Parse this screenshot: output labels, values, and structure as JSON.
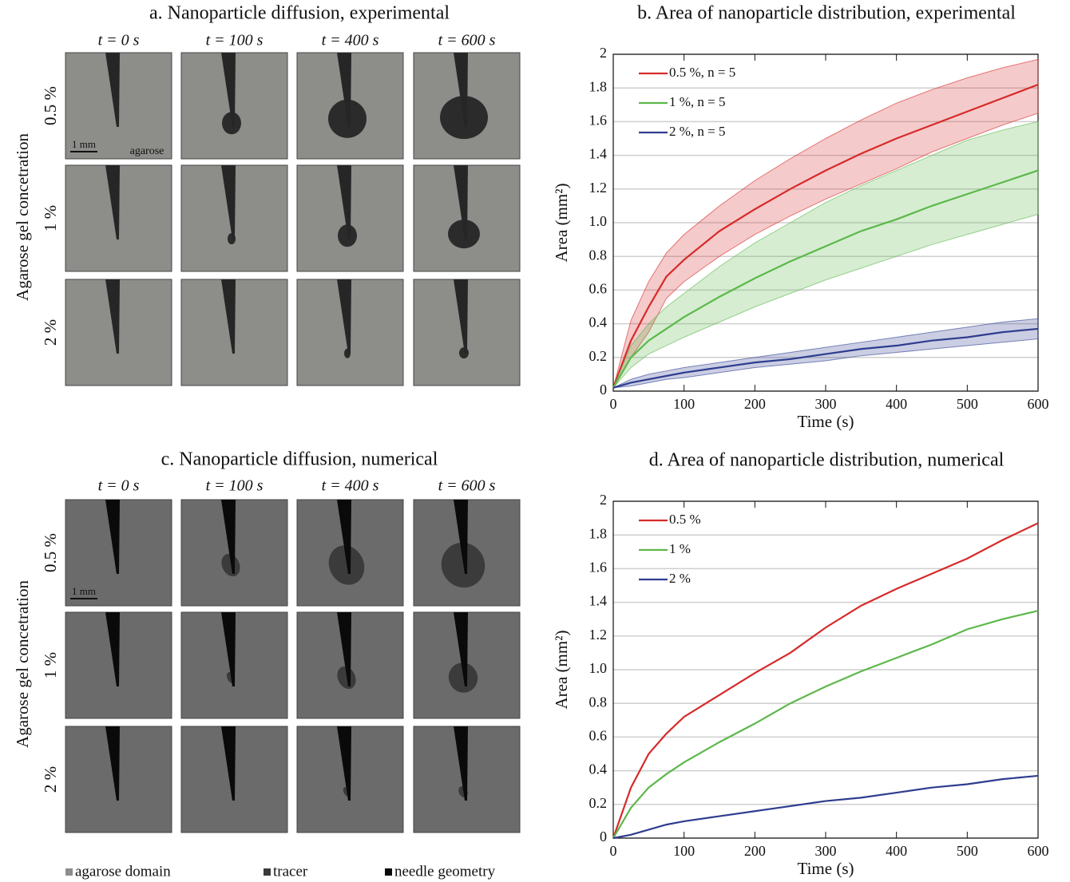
{
  "figure": {
    "panels": [
      {
        "title": "a. Nanoparticle diffusion, experimental",
        "time_labels": [
          "t = 0 s",
          "t = 100 s",
          "t = 400 s",
          "t = 600 s"
        ],
        "row_labels": [
          "0.5 %",
          "1 %",
          "2 %"
        ],
        "ylabel": "Agarose gel concetration",
        "scale_label": "1 mm",
        "domain_label": "agarose"
      },
      {
        "title": "c. Nanoparticle diffusion, numerical",
        "time_labels": [
          "t = 0 s",
          "t = 100 s",
          "t = 400 s",
          "t = 600 s"
        ],
        "row_labels": [
          "0.5 %",
          "1 %",
          "2 %"
        ],
        "ylabel": "Agarose gel concetration",
        "scale_label": "1 mm"
      }
    ],
    "legend": [
      "agarose domain",
      "tracer",
      "needle geometry"
    ]
  },
  "chart_data": [
    {
      "type": "line",
      "title": "b. Area of nanoparticle distribution, experimental",
      "xlabel": "Time (s)",
      "ylabel": "Area (mm²)",
      "x": [
        0,
        25,
        50,
        75,
        100,
        150,
        200,
        250,
        300,
        350,
        400,
        450,
        500,
        550,
        600
      ],
      "series": [
        {
          "name": "0.5 %, n = 5",
          "color": "#d62a2a",
          "values": [
            0.02,
            0.3,
            0.5,
            0.68,
            0.78,
            0.95,
            1.08,
            1.2,
            1.31,
            1.41,
            1.5,
            1.58,
            1.66,
            1.74,
            1.82
          ],
          "upper": [
            0.02,
            0.42,
            0.65,
            0.82,
            0.93,
            1.1,
            1.25,
            1.38,
            1.5,
            1.61,
            1.71,
            1.79,
            1.86,
            1.92,
            1.97
          ],
          "lower": [
            0.02,
            0.2,
            0.35,
            0.55,
            0.65,
            0.8,
            0.93,
            1.04,
            1.14,
            1.23,
            1.32,
            1.42,
            1.5,
            1.58,
            1.65
          ]
        },
        {
          "name": "1 %, n = 5",
          "color": "#5cb84a",
          "values": [
            0.02,
            0.2,
            0.3,
            0.37,
            0.44,
            0.56,
            0.67,
            0.77,
            0.86,
            0.95,
            1.02,
            1.1,
            1.17,
            1.24,
            1.31
          ],
          "upper": [
            0.02,
            0.27,
            0.4,
            0.5,
            0.58,
            0.74,
            0.88,
            1.0,
            1.12,
            1.22,
            1.31,
            1.4,
            1.49,
            1.55,
            1.6
          ],
          "lower": [
            0.02,
            0.14,
            0.22,
            0.27,
            0.32,
            0.41,
            0.5,
            0.58,
            0.66,
            0.73,
            0.8,
            0.87,
            0.93,
            0.99,
            1.05
          ]
        },
        {
          "name": "2 %, n = 5",
          "color": "#2e3d8f",
          "values": [
            0.02,
            0.05,
            0.07,
            0.09,
            0.11,
            0.14,
            0.17,
            0.19,
            0.22,
            0.25,
            0.27,
            0.3,
            0.32,
            0.35,
            0.37
          ],
          "upper": [
            0.02,
            0.07,
            0.1,
            0.12,
            0.14,
            0.17,
            0.2,
            0.23,
            0.26,
            0.29,
            0.32,
            0.35,
            0.38,
            0.41,
            0.43
          ],
          "lower": [
            0.02,
            0.03,
            0.05,
            0.07,
            0.08,
            0.11,
            0.14,
            0.16,
            0.18,
            0.21,
            0.23,
            0.25,
            0.27,
            0.29,
            0.31
          ]
        }
      ],
      "xlim": [
        0,
        600
      ],
      "xticks": [
        0,
        100,
        200,
        300,
        400,
        500,
        600
      ],
      "ylim": [
        0,
        2
      ],
      "yticks": [
        0,
        0.2,
        0.4,
        0.6,
        0.8,
        {
          "value": 1,
          "label": "1.0"
        },
        1.2,
        1.4,
        1.6,
        1.8,
        2
      ],
      "grid": true,
      "legend": "upper left"
    },
    {
      "type": "line",
      "title": "d. Area of nanoparticle distribution, numerical",
      "xlabel": "Time (s)",
      "ylabel": "Area (mm²)",
      "x": [
        0,
        25,
        50,
        75,
        100,
        150,
        200,
        250,
        300,
        350,
        400,
        450,
        500,
        550,
        600
      ],
      "series": [
        {
          "name": "0.5 %",
          "color": "#d62a2a",
          "values": [
            0,
            0.3,
            0.5,
            0.62,
            0.72,
            0.85,
            0.98,
            1.1,
            1.25,
            1.38,
            1.48,
            1.57,
            1.66,
            1.77,
            1.87
          ]
        },
        {
          "name": "1 %",
          "color": "#5cb84a",
          "values": [
            0,
            0.18,
            0.3,
            0.38,
            0.45,
            0.57,
            0.68,
            0.8,
            0.9,
            0.99,
            1.07,
            1.15,
            1.24,
            1.3,
            1.35
          ]
        },
        {
          "name": "2 %",
          "color": "#2e3d8f",
          "values": [
            0,
            0.02,
            0.05,
            0.08,
            0.1,
            0.13,
            0.16,
            0.19,
            0.22,
            0.24,
            0.27,
            0.3,
            0.32,
            0.35,
            0.37
          ]
        }
      ],
      "xlim": [
        0,
        600
      ],
      "xticks": [
        0,
        100,
        200,
        300,
        400,
        500,
        600
      ],
      "ylim": [
        0,
        2
      ],
      "yticks": [
        0,
        0.2,
        0.4,
        0.6,
        0.8,
        {
          "value": 1,
          "label": "1.0"
        },
        1.2,
        1.4,
        1.6,
        1.8,
        2
      ],
      "grid": true,
      "legend": "upper left"
    }
  ]
}
